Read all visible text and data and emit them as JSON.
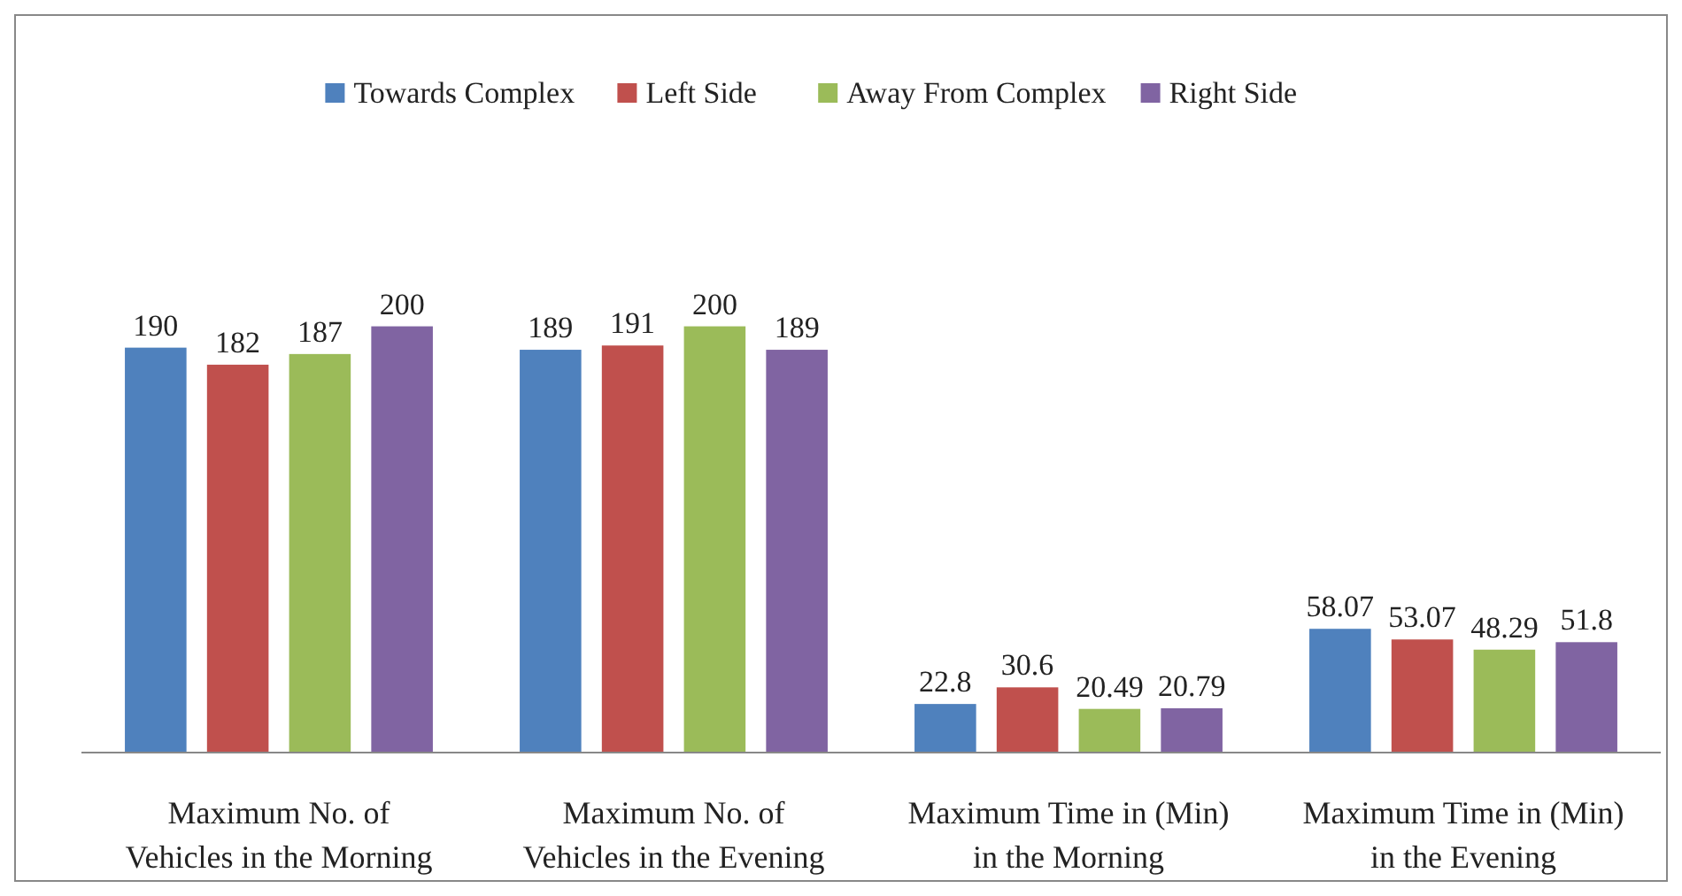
{
  "chart_data": {
    "type": "bar",
    "relative": false,
    "categories": [
      "Maximum No. of Vehicles in the Morning",
      "Maximum No. of Vehicles in the Evening",
      "Maximum Time in (Min) in the Morning",
      "Maximum Time in (Min) in the Evening"
    ],
    "series": [
      {
        "name": "Towards Complex",
        "color": "#4f81bd",
        "values": [
          190,
          189,
          22.8,
          58.07
        ]
      },
      {
        "name": "Left Side",
        "color": "#c0504d",
        "values": [
          182,
          191,
          30.6,
          53.07
        ]
      },
      {
        "name": "Away From Complex",
        "color": "#9bbb59",
        "values": [
          187,
          200,
          20.49,
          48.29
        ]
      },
      {
        "name": "Right Side",
        "color": "#8064a2",
        "values": [
          200,
          189,
          20.79,
          51.8
        ]
      }
    ],
    "data_labels": true,
    "legend": "top"
  }
}
